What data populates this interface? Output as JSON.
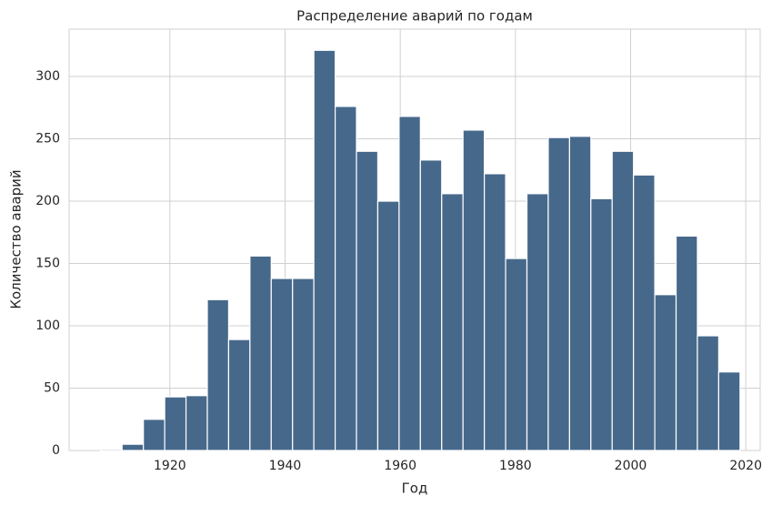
{
  "chart_data": {
    "type": "histogram",
    "title": "Распределение аварий по годам",
    "x_label": "Год",
    "y_label": "Количество аварий",
    "bins": [
      1908,
      1911.7,
      1915.4,
      1919.1,
      1922.8,
      1926.5,
      1930.2,
      1933.9,
      1937.6,
      1941.3,
      1945,
      1948.7,
      1952.4,
      1956.1,
      1959.8,
      1963.5,
      1967.2,
      1970.9,
      1974.6,
      1978.3,
      1982,
      1985.7,
      1989.4,
      1993.1,
      1996.8,
      2000.5,
      2004.2,
      2007.9,
      2011.6,
      2015.3,
      2019
    ],
    "values": [
      1,
      5,
      25,
      43,
      44,
      121,
      89,
      156,
      138,
      138,
      321,
      276,
      240,
      200,
      268,
      233,
      206,
      257,
      222,
      154,
      206,
      251,
      252,
      202,
      240,
      221,
      125,
      172,
      92,
      63
    ],
    "color": "#46698b",
    "xlim": [
      1902.5,
      2022.5
    ],
    "xticks": [
      1920,
      1940,
      1960,
      1980,
      2000,
      2020
    ],
    "ylim": [
      0,
      338
    ],
    "yticks": [
      0,
      50,
      100,
      150,
      200,
      250,
      300
    ],
    "grid": true
  }
}
